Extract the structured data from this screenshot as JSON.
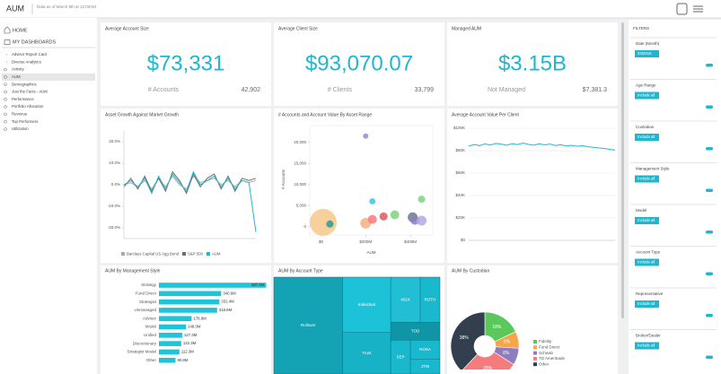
{
  "header": {
    "title": "AUM",
    "subtitle": "Data as of March 8th at 12:03AM"
  },
  "sidebar": {
    "items": [
      "HOME",
      "MY DASHBOARDS",
      "Advisor Report Card",
      "Diverse Analytics",
      "Activity",
      "AUM",
      "Demographics",
      "Just the Facts - AUM",
      "Performance",
      "Portfolio Allocation",
      "Revenue",
      "Top Performers",
      "Utilization"
    ],
    "selected": "AUM"
  },
  "kpis": [
    {
      "title": "Average Account Size",
      "value": "$73,331",
      "sub_label": "# Accounts",
      "sub_value": "42,902"
    },
    {
      "title": "Average Client Size",
      "value": "$93,070.07",
      "sub_label": "# Clients",
      "sub_value": "33,799"
    },
    {
      "title": "Managed AUM",
      "value": "$3.15B",
      "sub_label": "Not Managed",
      "sub_value": "$7,381.3"
    }
  ],
  "chart_data": [
    {
      "type": "line",
      "title": "Asset Growth Against Market Growth",
      "ylim": [
        -25,
        25
      ],
      "yticks": [
        {
          "value": 20,
          "label": "20.0%"
        },
        {
          "value": 10,
          "label": "10.0%"
        },
        {
          "value": 0,
          "label": "0.0%"
        },
        {
          "value": -10,
          "label": "-10.0%"
        },
        {
          "value": -20,
          "label": "-20.0%"
        }
      ],
      "series": [
        {
          "name": "Barclays Capital US Agg Bond",
          "color": "#a9a9a9",
          "values": [
            0,
            1,
            -1,
            2,
            -2,
            3,
            -1,
            4,
            0,
            -2,
            4,
            1,
            2,
            3,
            0,
            2,
            -1,
            2,
            1,
            2
          ]
        },
        {
          "name": "S&P 500",
          "color": "#6e6e6e",
          "values": [
            -1,
            3,
            -2,
            4,
            -3,
            3,
            -3,
            6,
            2,
            -4,
            5,
            -1,
            3,
            5,
            -2,
            4,
            -3,
            3,
            2,
            3
          ]
        },
        {
          "name": "AUM",
          "color": "#1fb7d0",
          "values": [
            0,
            2,
            -1,
            3,
            -4,
            4,
            -2,
            5,
            1,
            -3,
            6,
            0,
            2,
            4,
            -1,
            3,
            -2,
            2,
            1,
            -22
          ]
        }
      ]
    },
    {
      "type": "scatter",
      "title": "# Accounts and Account Value By Asset Range",
      "x_label": "AUM",
      "y_label": "# Accounts",
      "xlim": [
        -50,
        500
      ],
      "xticks": [
        {
          "value": 0,
          "label": "$0"
        },
        {
          "value": 200,
          "label": "$200M"
        },
        {
          "value": 400,
          "label": "$400M"
        }
      ],
      "ylim": [
        -2000,
        24000
      ],
      "yticks": [
        0,
        {
          "value": 5000,
          "label": "5,000"
        },
        {
          "value": 10000,
          "label": "10,000"
        },
        {
          "value": 15000,
          "label": "15,000"
        },
        {
          "value": 20000,
          "label": "20,000"
        }
      ],
      "x": [
        10,
        40,
        200,
        230,
        280,
        330,
        410,
        420,
        450,
        200,
        230,
        450
      ],
      "values": [
        1000,
        600,
        800,
        1700,
        2400,
        2800,
        2200,
        1500,
        1400,
        21500,
        6000,
        6500
      ],
      "sizes": [
        30,
        8,
        12,
        10,
        9,
        10,
        11,
        10,
        11,
        6,
        7,
        8
      ],
      "colors": [
        "#f6c88a",
        "#2a9d8f",
        "#f4b183",
        "#f47c7c",
        "#e05a5a",
        "#7ed37e",
        "#6c7a89",
        "#8e7cc3",
        "#b4a7e0",
        "#9a86d3",
        "#3cc7e0",
        "#7ed37e"
      ]
    },
    {
      "type": "line",
      "title": "Average Account Value Per Client",
      "ylim": [
        0,
        100000
      ],
      "yticks": [
        {
          "value": 0,
          "label": "$0"
        },
        {
          "value": 20000,
          "label": "$20K"
        },
        {
          "value": 40000,
          "label": "$40K"
        },
        {
          "value": 60000,
          "label": "$60K"
        },
        {
          "value": 80000,
          "label": "$80K"
        },
        {
          "value": 100000,
          "label": "$100K"
        }
      ],
      "series": [
        {
          "name": "Average Account Value",
          "color": "#1fb7d0",
          "values": [
            84000,
            85500,
            84500,
            86000,
            85000,
            86500,
            85800,
            84800,
            86200,
            85400,
            86800,
            85600,
            84900,
            86100,
            85200,
            85900,
            84600,
            85300,
            84200,
            84800,
            83900,
            84400,
            83500,
            83000,
            82400,
            82000,
            81200,
            80500
          ]
        }
      ]
    },
    {
      "type": "bar",
      "title": "AUM By Management Style",
      "color": "#1fc4d8",
      "categories": [
        "Strategy",
        "Fund Direct",
        "Strategist",
        "Unmanaged",
        "Advisor",
        "Model",
        "Unified",
        "Discretionary",
        "Strategist Model",
        "Other"
      ],
      "values": [
        587.6,
        340.9,
        331.4,
        318.8,
        178.9,
        148.0,
        127.3,
        122.3,
        112.3,
        90.8
      ],
      "value_labels": [
        "587.6M",
        "340.9M",
        "331.4M",
        "318.8M",
        "178.9M",
        "148.0M",
        "127.3M",
        "122.3M",
        "112.3M",
        "90.8M"
      ]
    },
    {
      "type": "treemap",
      "title": "AUM By Account Type",
      "categories": [
        "Rollover",
        "Individual",
        "Trust",
        "401K",
        "ROTH",
        "TOD",
        "SEP",
        "ROSA",
        "JTW"
      ],
      "values": [
        300,
        120,
        90,
        60,
        40,
        40,
        30,
        25,
        20
      ],
      "colors": [
        "#14a3b5",
        "#1cc3d8",
        "#18b2c6",
        "#22bfd4",
        "#1ab8cd",
        "#0f95a6",
        "#1ab8cd",
        "#1ab8cd",
        "#1ab8cd"
      ]
    },
    {
      "type": "pie",
      "title": "AUM By Custodian",
      "categories": [
        "Fidelity",
        "Fund Direct",
        "Schwab",
        "TD Ameritrade",
        "Other"
      ],
      "values": [
        18,
        8,
        8,
        28,
        38
      ],
      "value_labels": [
        "18%",
        "8%",
        "8%",
        "28%",
        "38%"
      ],
      "colors": [
        "#5bc85b",
        "#f6a54a",
        "#8e7cc3",
        "#f47c7c",
        "#333f4f"
      ]
    }
  ],
  "filters": {
    "title": "FILTERS",
    "items": [
      {
        "name": "Date (Month)",
        "button": "03/2018"
      },
      {
        "name": "Age Range",
        "button": "Include all"
      },
      {
        "name": "Custodian",
        "button": "Include all"
      },
      {
        "name": "Management Style",
        "button": "Include all"
      },
      {
        "name": "Model",
        "button": "Include all"
      },
      {
        "name": "Account Type",
        "button": "Include all"
      },
      {
        "name": "Representative",
        "button": "Include all"
      },
      {
        "name": "Broker/Dealer",
        "button": "Include all"
      }
    ]
  }
}
